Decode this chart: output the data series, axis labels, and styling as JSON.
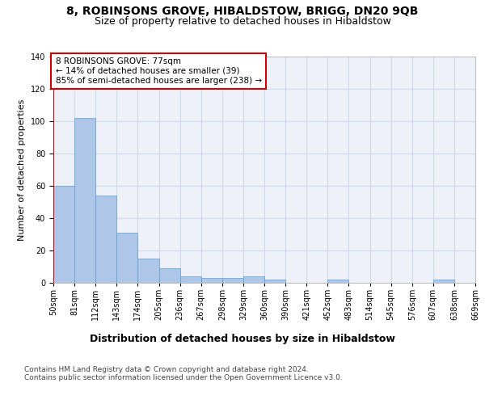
{
  "title": "8, ROBINSONS GROVE, HIBALDSTOW, BRIGG, DN20 9QB",
  "subtitle": "Size of property relative to detached houses in Hibaldstow",
  "xlabel": "Distribution of detached houses by size in Hibaldstow",
  "ylabel": "Number of detached properties",
  "bar_values": [
    60,
    102,
    54,
    31,
    15,
    9,
    4,
    3,
    3,
    4,
    2,
    0,
    0,
    2,
    0,
    0,
    0,
    0,
    2,
    0
  ],
  "bar_labels": [
    "50sqm",
    "81sqm",
    "112sqm",
    "143sqm",
    "174sqm",
    "205sqm",
    "236sqm",
    "267sqm",
    "298sqm",
    "329sqm",
    "360sqm",
    "390sqm",
    "421sqm",
    "452sqm",
    "483sqm",
    "514sqm",
    "545sqm",
    "576sqm",
    "607sqm",
    "638sqm",
    "669sqm"
  ],
  "bar_color": "#aec6e8",
  "bar_edge_color": "#5a9fd4",
  "grid_color": "#d0d8e8",
  "background_color": "#eef2f8",
  "vline_color": "#cc0000",
  "annotation_box_text": "8 ROBINSONS GROVE: 77sqm\n← 14% of detached houses are smaller (39)\n85% of semi-detached houses are larger (238) →",
  "annotation_box_color": "#cc0000",
  "ylim": [
    0,
    140
  ],
  "yticks": [
    0,
    20,
    40,
    60,
    80,
    100,
    120,
    140
  ],
  "footer_text": "Contains HM Land Registry data © Crown copyright and database right 2024.\nContains public sector information licensed under the Open Government Licence v3.0.",
  "title_fontsize": 10,
  "subtitle_fontsize": 9,
  "xlabel_fontsize": 9,
  "ylabel_fontsize": 8,
  "tick_fontsize": 7,
  "footer_fontsize": 6.5,
  "annot_fontsize": 7.5
}
